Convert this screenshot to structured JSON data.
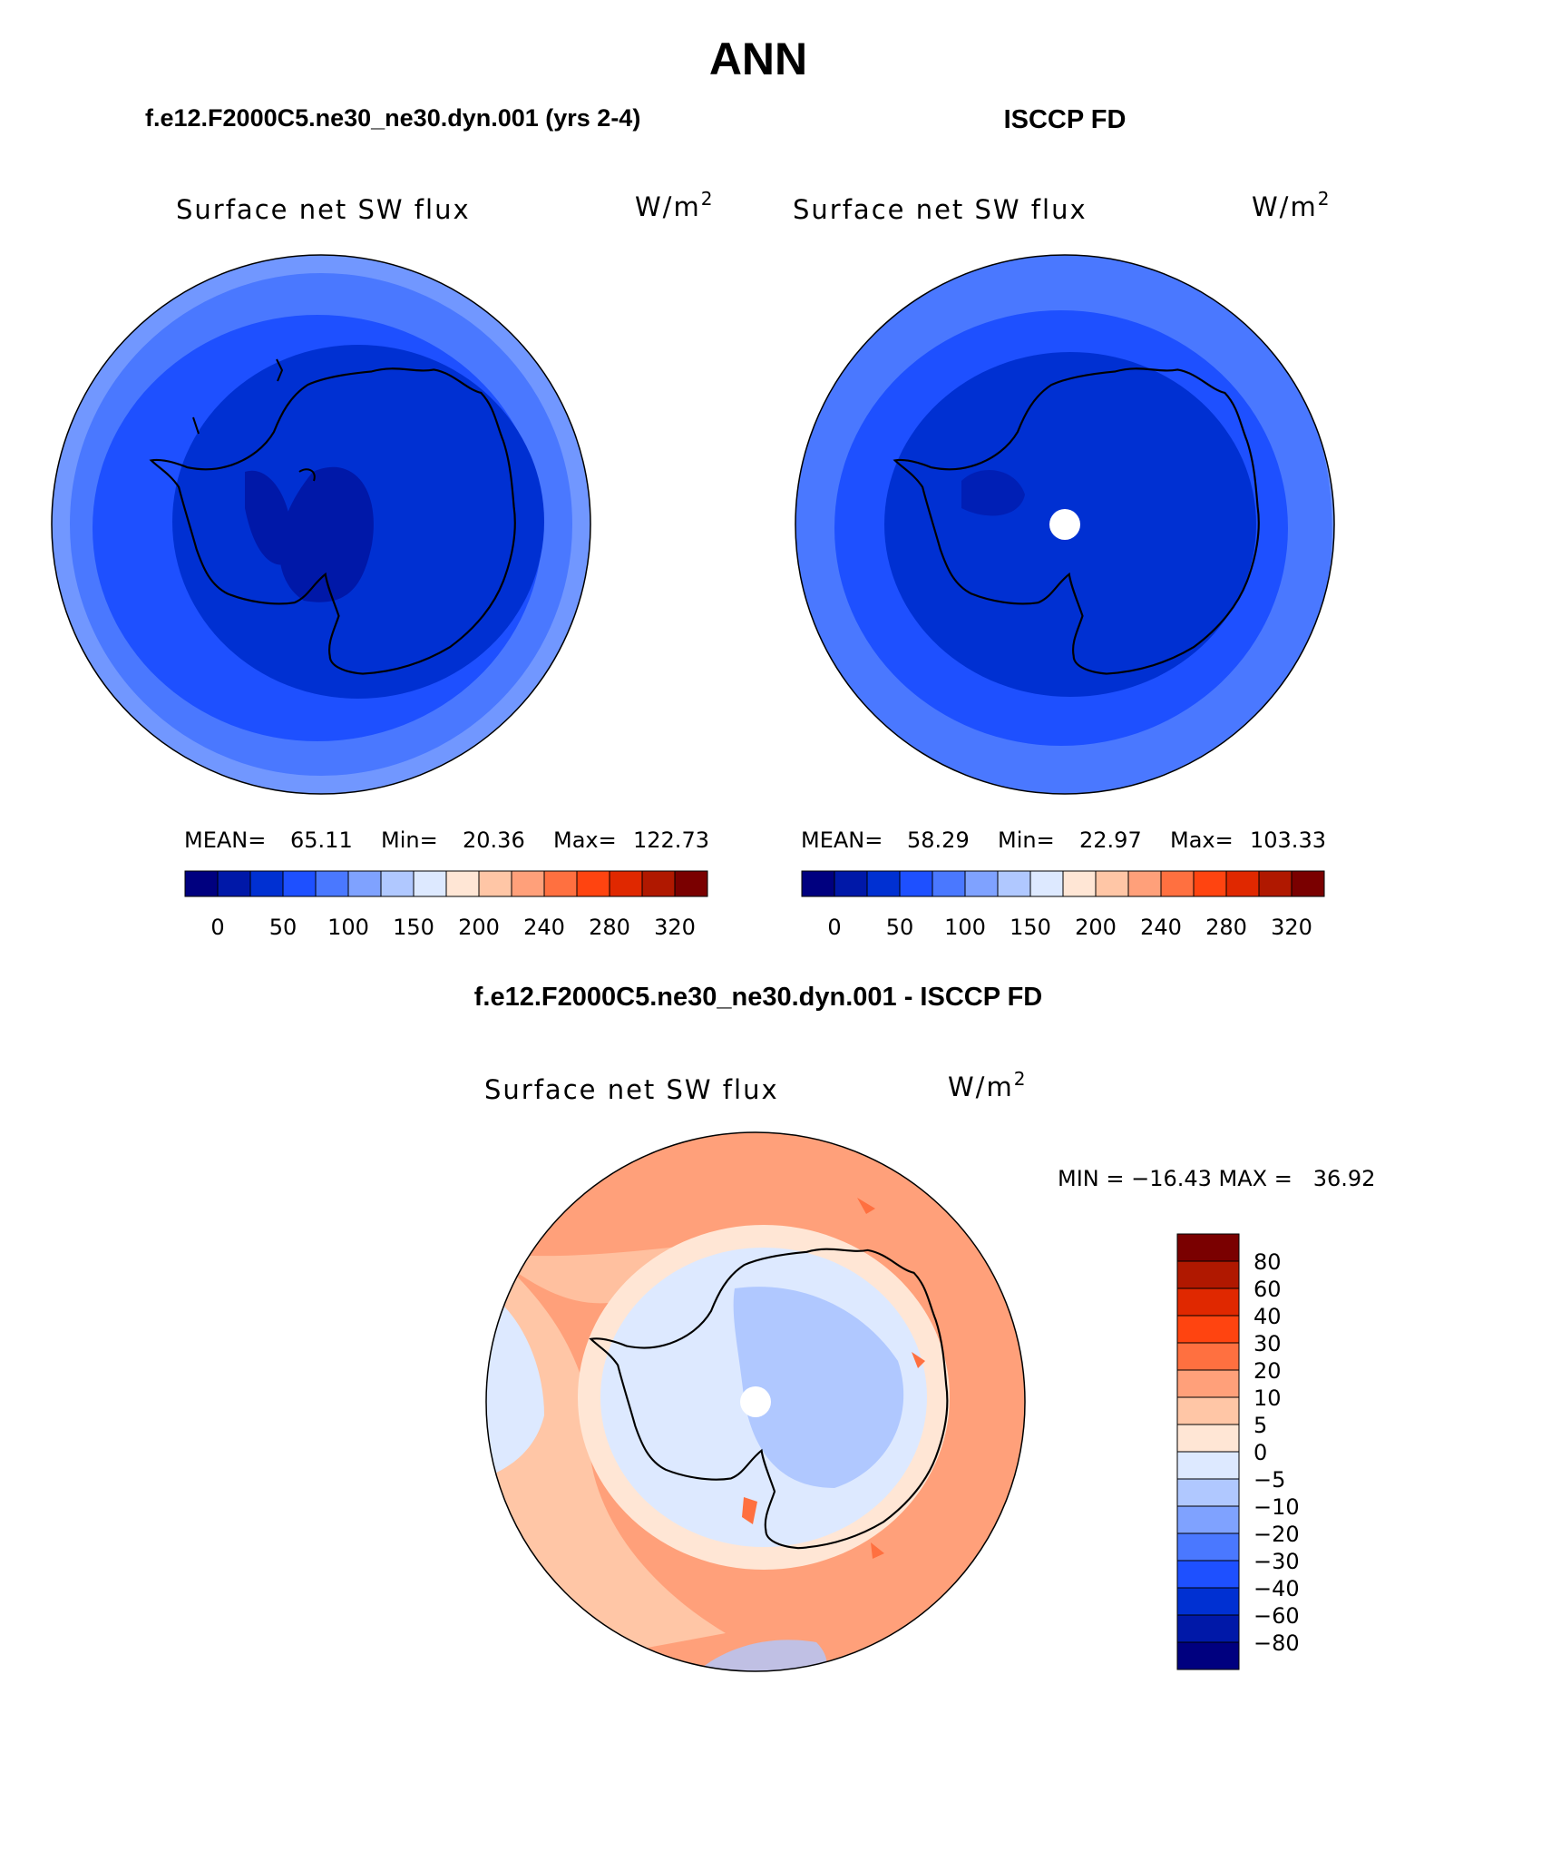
{
  "page": {
    "title": "ANN"
  },
  "panels": {
    "model": {
      "heading": "f.e12.F2000C5.ne30_ne30.dyn.001 (yrs 2-4)",
      "variable": "Surface net SW flux",
      "units_base": "W/m",
      "units_exp": "2",
      "stats": {
        "mean_label": "MEAN=",
        "mean": "65.11",
        "min_label": "Min=",
        "min": "20.36",
        "max_label": "Max=",
        "max": "122.73"
      }
    },
    "obs": {
      "heading": "ISCCP FD",
      "variable": "Surface net SW flux",
      "units_base": "W/m",
      "units_exp": "2",
      "stats": {
        "mean_label": "MEAN=",
        "mean": "58.29",
        "min_label": "Min=",
        "min": "22.97",
        "max_label": "Max=",
        "max": "103.33"
      }
    },
    "diff": {
      "heading": "f.e12.F2000C5.ne30_ne30.dyn.001 - ISCCP FD",
      "variable": "Surface net SW flux",
      "units_base": "W/m",
      "units_exp": "2",
      "minmax": "MIN = −16.43 MAX =   36.92"
    }
  },
  "colorbars": {
    "abs": {
      "colors": [
        "#00007f",
        "#0018a8",
        "#0030d2",
        "#1e50ff",
        "#4a78ff",
        "#7fa2ff",
        "#b0c8ff",
        "#dde9ff",
        "#ffe6d5",
        "#ffc6a6",
        "#ffa07a",
        "#ff7040",
        "#ff4410",
        "#e02800",
        "#b01800",
        "#7a0000"
      ],
      "tick_labels": [
        "0",
        "50",
        "100",
        "150",
        "200",
        "240",
        "280",
        "320"
      ]
    },
    "diff": {
      "colors": [
        "#7a0000",
        "#b01800",
        "#e02800",
        "#ff4410",
        "#ff7040",
        "#ffa07a",
        "#ffc6a6",
        "#ffe6d5",
        "#dde9ff",
        "#b0c8ff",
        "#7fa2ff",
        "#4a78ff",
        "#1e50ff",
        "#0030d2",
        "#0018a8",
        "#00007f"
      ],
      "tick_labels": [
        "80",
        "60",
        "40",
        "30",
        "20",
        "10",
        "5",
        "0",
        "−5",
        "−10",
        "−20",
        "−30",
        "−40",
        "−60",
        "−80"
      ]
    }
  },
  "chart_data": [
    {
      "type": "heatmap",
      "projection": "south polar stereographic",
      "title": "f.e12.F2000C5.ne30_ne30.dyn.001 (yrs 2-4)",
      "variable": "Surface net SW flux",
      "units": "W/m2",
      "mean": 65.11,
      "min": 20.36,
      "max": 122.73,
      "contour_levels": [
        0,
        50,
        100,
        150,
        200,
        240,
        280,
        320
      ]
    },
    {
      "type": "heatmap",
      "projection": "south polar stereographic",
      "title": "ISCCP FD",
      "variable": "Surface net SW flux",
      "units": "W/m2",
      "mean": 58.29,
      "min": 22.97,
      "max": 103.33,
      "contour_levels": [
        0,
        50,
        100,
        150,
        200,
        240,
        280,
        320
      ]
    },
    {
      "type": "heatmap",
      "projection": "south polar stereographic",
      "title": "f.e12.F2000C5.ne30_ne30.dyn.001 - ISCCP FD",
      "variable": "Surface net SW flux",
      "units": "W/m2",
      "min": -16.43,
      "max": 36.92,
      "contour_levels": [
        -80,
        -60,
        -40,
        -30,
        -20,
        -10,
        -5,
        0,
        5,
        10,
        20,
        30,
        40,
        60,
        80
      ]
    }
  ]
}
